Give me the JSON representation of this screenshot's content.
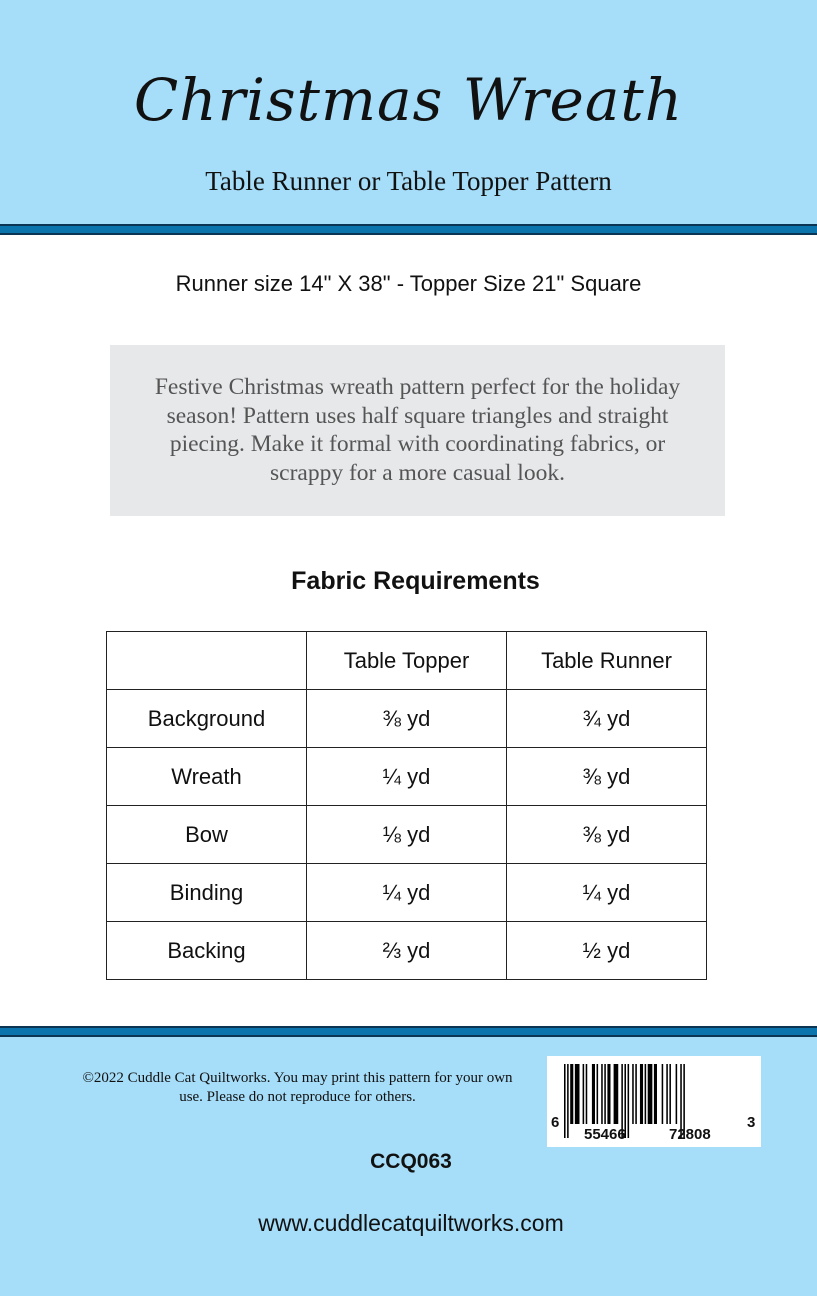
{
  "header": {
    "title": "Christmas Wreath",
    "subtitle": "Table Runner or Table Topper Pattern"
  },
  "size_line": "Runner size 14\" X 38\" - Topper Size 21\" Square",
  "description": "Festive Christmas wreath pattern perfect for the holiday season! Pattern uses half square triangles and straight piecing. Make it formal with coordinating fabrics, or scrappy for a more casual look.",
  "fabric": {
    "heading": "Fabric Requirements",
    "columns": [
      "",
      "Table Topper",
      "Table Runner"
    ],
    "rows": [
      [
        "Background",
        "⅜ yd",
        "¾ yd"
      ],
      [
        "Wreath",
        "¼ yd",
        "⅜ yd"
      ],
      [
        "Bow",
        "⅛ yd",
        "⅜ yd"
      ],
      [
        "Binding",
        "¼ yd",
        "¼ yd"
      ],
      [
        "Backing",
        "⅔ yd",
        "½ yd"
      ]
    ]
  },
  "footer": {
    "copyright": "©2022 Cuddle Cat Quiltworks. You may print this pattern for your own use. Please do not reproduce for others.",
    "product_code": "CCQ063",
    "website": "www.cuddlecatquiltworks.com",
    "barcode": {
      "first": "6",
      "left": "55466",
      "right": "72808",
      "last": "3"
    }
  },
  "colors": {
    "light_blue": "#a6ddf8",
    "stripe": "#0b74ad",
    "desc_bg": "#e7e8ea"
  }
}
